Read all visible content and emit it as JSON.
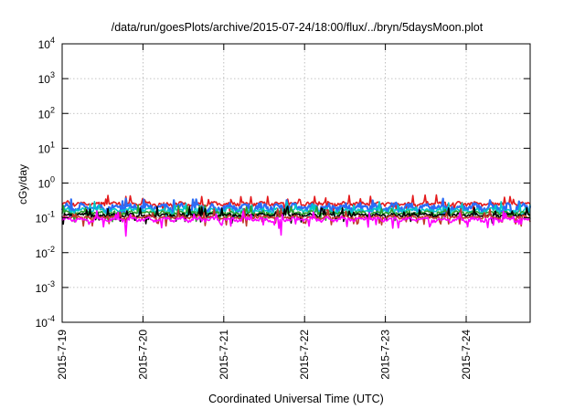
{
  "chart_data": {
    "type": "line",
    "title": "/data/run/goesPlots/archive/2015-07-24/18:00/flux/../bryn/5daysMoon.plot",
    "xlabel": "Coordinated Universal Time (UTC)",
    "ylabel": "cGy/day",
    "y_scale": "log",
    "ylim": [
      0.0001,
      10000
    ],
    "y_ticks": [
      {
        "value": 0.0001,
        "base": "10",
        "exp": "-4"
      },
      {
        "value": 0.001,
        "base": "10",
        "exp": "-3"
      },
      {
        "value": 0.01,
        "base": "10",
        "exp": "-2"
      },
      {
        "value": 0.1,
        "base": "10",
        "exp": "-1"
      },
      {
        "value": 1,
        "base": "10",
        "exp": "0"
      },
      {
        "value": 10,
        "base": "10",
        "exp": "1"
      },
      {
        "value": 100,
        "base": "10",
        "exp": "2"
      },
      {
        "value": 1000,
        "base": "10",
        "exp": "3"
      },
      {
        "value": 10000,
        "base": "10",
        "exp": "4"
      }
    ],
    "xlim": [
      "2015-07-19T00:00",
      "2015-07-24T19:00"
    ],
    "x_ticks": [
      "2015-7-19",
      "2015-7-20",
      "2015-7-21",
      "2015-7-22",
      "2015-7-23",
      "2015-7-24"
    ],
    "grid": true,
    "series": [
      {
        "color": "#e41a1c",
        "base": 0.255,
        "amp": 0.03
      },
      {
        "color": "#2b6cf6",
        "base": 0.2,
        "amp": 0.05
      },
      {
        "color": "#00c8c8",
        "base": 0.165,
        "amp": 0.025
      },
      {
        "color": "#2ca02c",
        "base": 0.14,
        "amp": 0.015
      },
      {
        "color": "#000000",
        "base": 0.12,
        "amp": 0.012
      },
      {
        "color": "#c0392b",
        "base": 0.105,
        "amp": 0.01
      },
      {
        "color": "#ff00ff",
        "base": 0.09,
        "amp": 0.012
      }
    ],
    "dips": [
      {
        "x": "2015-07-19T19:00",
        "series": 6,
        "value": 0.03
      },
      {
        "x": "2015-07-21T17:00",
        "series": 6,
        "value": 0.032
      },
      {
        "x": "2015-07-23T13:00",
        "series": 6,
        "value": 0.055
      },
      {
        "x": "2015-07-20T23:00",
        "series": 6,
        "value": 0.065
      }
    ]
  }
}
